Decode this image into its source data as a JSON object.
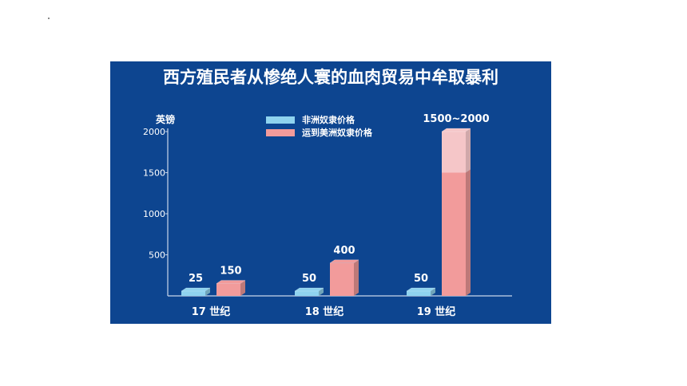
{
  "chart_data": {
    "type": "bar",
    "title": "西方殖民者从惨绝人寰的血肉贸易中牟取暴利",
    "ylabel": "英镑",
    "ylim": [
      0,
      2000
    ],
    "yticks": [
      500,
      1000,
      1500,
      2000
    ],
    "categories": [
      "17 世纪",
      "18 世纪",
      "19 世纪"
    ],
    "series": [
      {
        "name": "非洲奴隶价格",
        "values": [
          25,
          50,
          50
        ],
        "labels": [
          "25",
          "50",
          "50"
        ],
        "color": "#8fd3ef"
      },
      {
        "name": "运到美洲奴隶价格",
        "values": [
          150,
          400,
          2000
        ],
        "range_low": [
          null,
          null,
          1500
        ],
        "labels": [
          "150",
          "400",
          "1500~2000"
        ],
        "color": "#f29b9b",
        "range_color": "#f5c6c8"
      }
    ],
    "legend_position": "top-center",
    "grid": false
  }
}
